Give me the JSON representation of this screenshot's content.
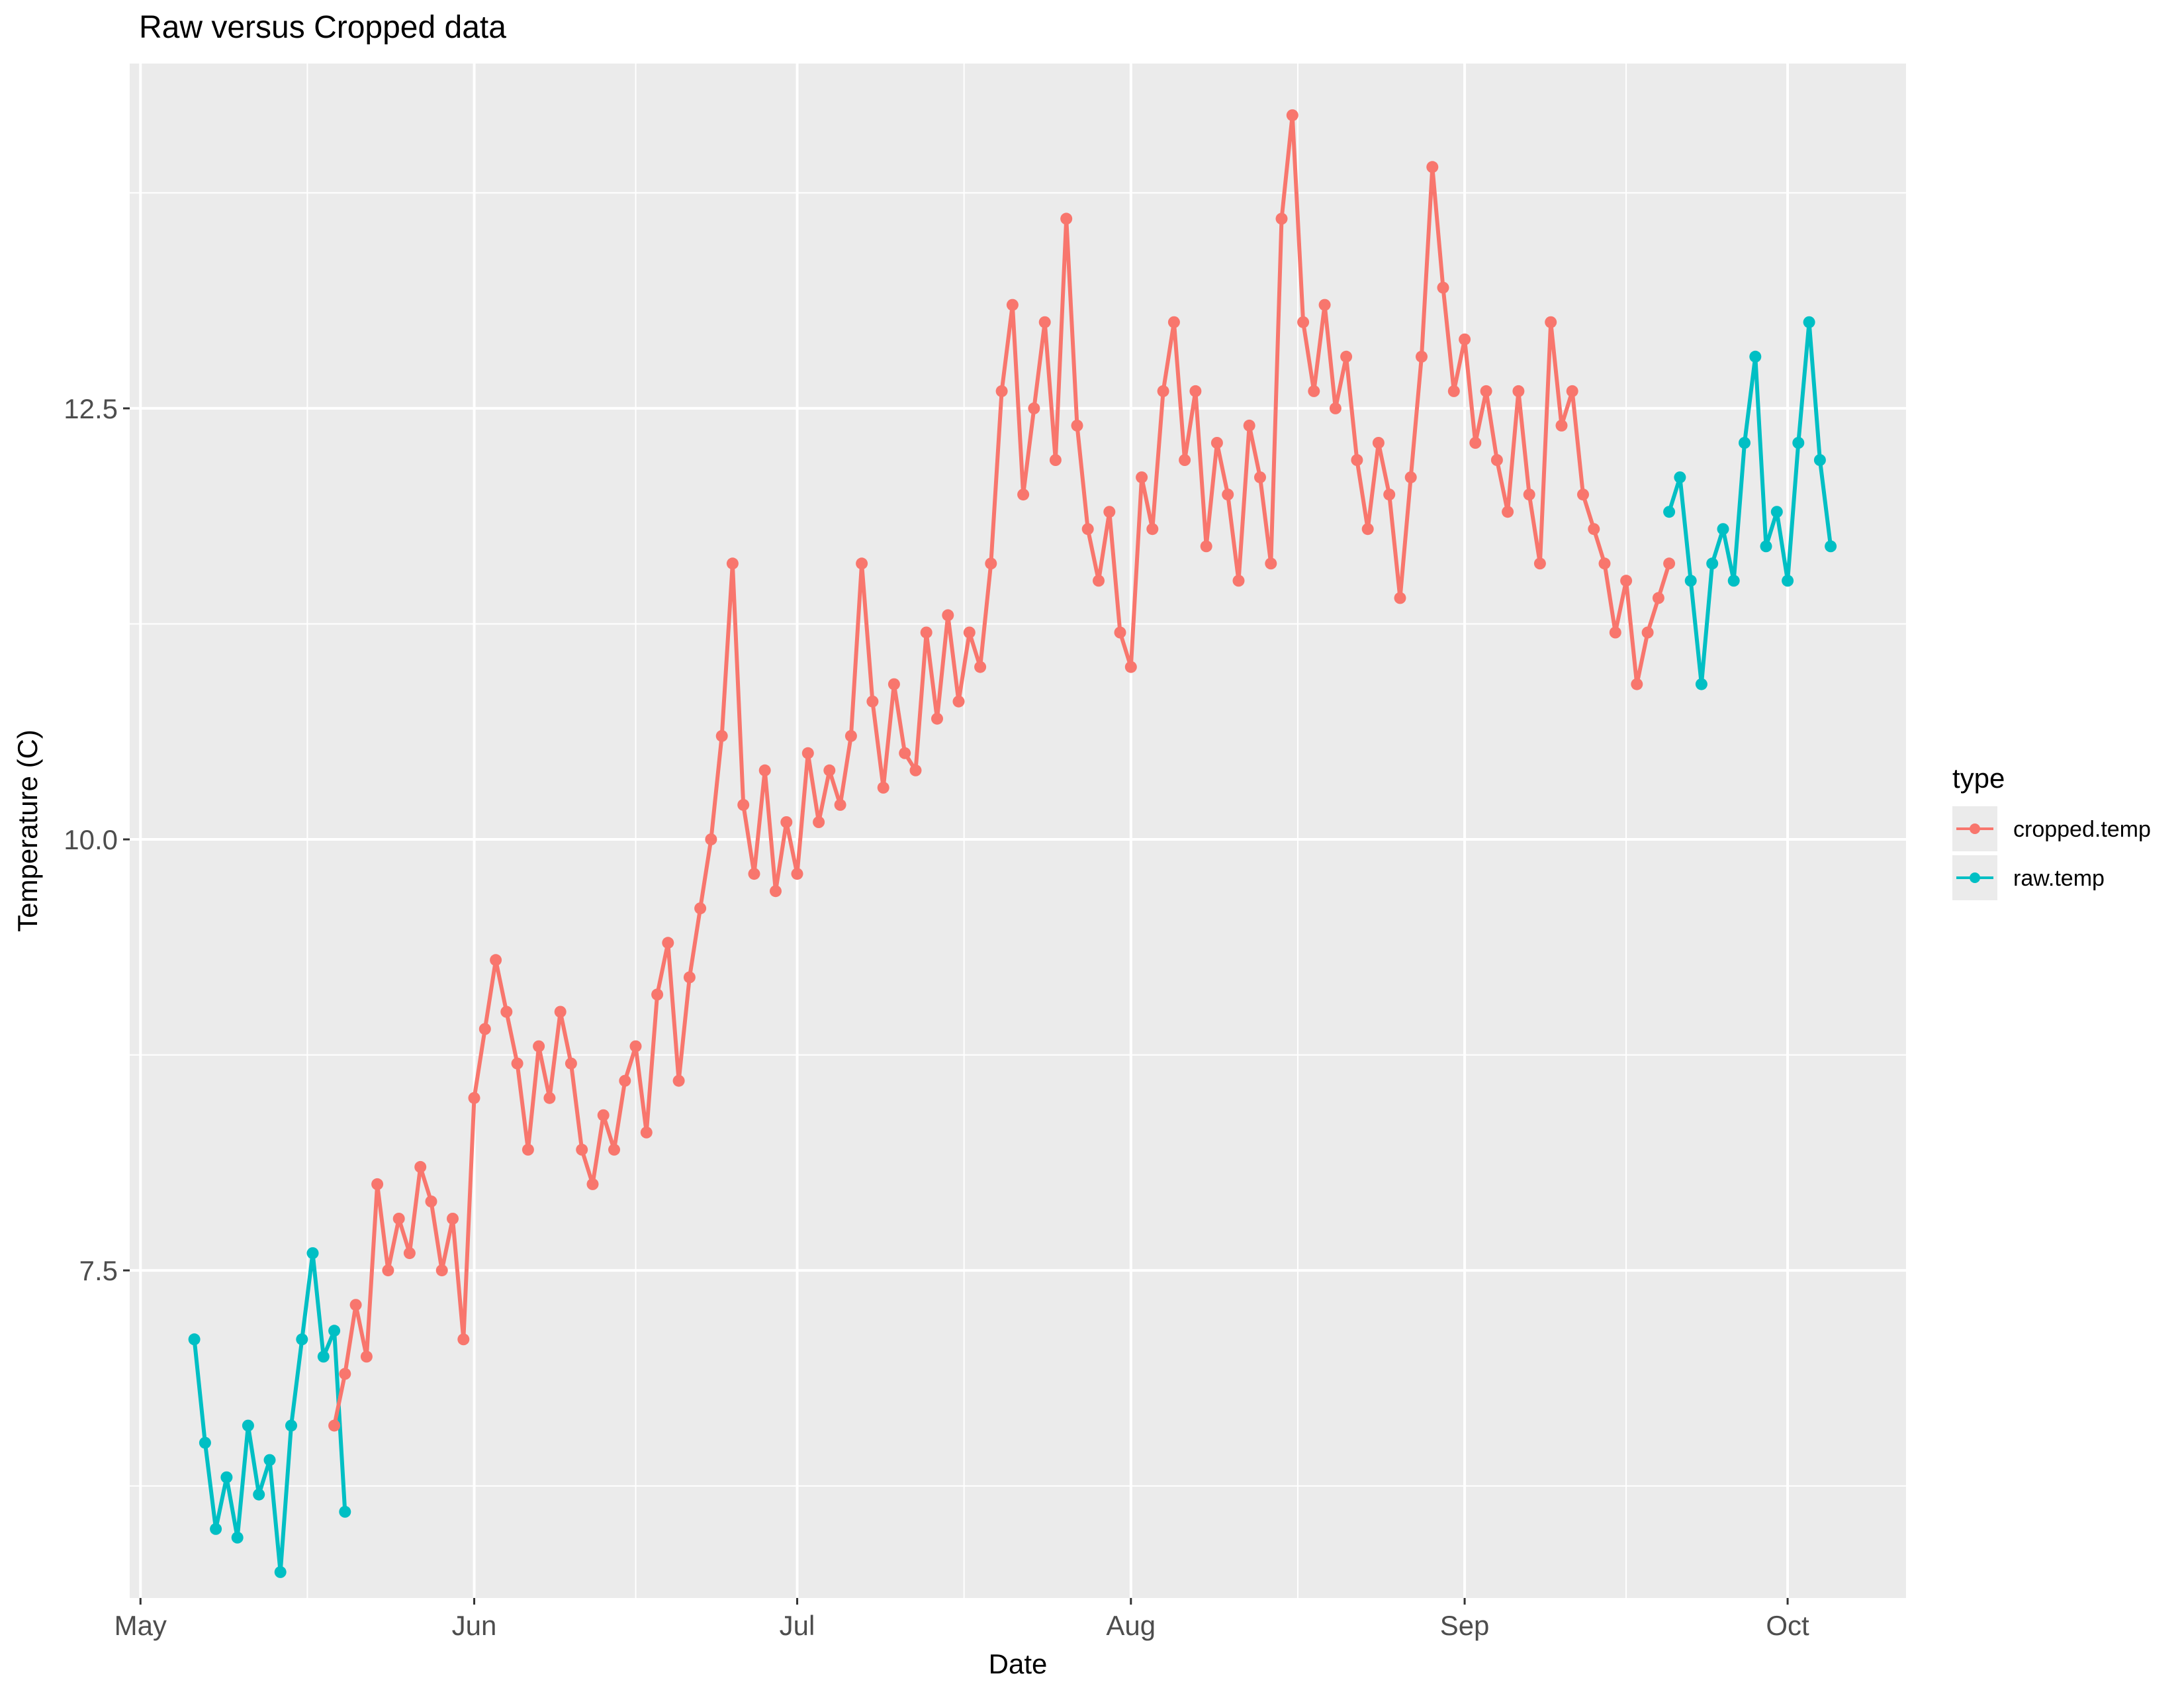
{
  "chart_data": {
    "type": "line",
    "title": "Raw versus Cropped data",
    "xlabel": "Date",
    "ylabel": "Temperature (C)",
    "x_ticks": [
      "May",
      "Jun",
      "Jul",
      "Aug",
      "Sep",
      "Oct"
    ],
    "x_tick_dates": [
      "2000-05-01",
      "2000-06-01",
      "2000-07-01",
      "2000-08-01",
      "2000-09-01",
      "2000-10-01"
    ],
    "xlim": [
      "2000-04-30",
      "2000-10-12"
    ],
    "y_ticks": [
      "7.5",
      "10.0",
      "12.5"
    ],
    "y_tick_values": [
      7.5,
      10.0,
      12.5
    ],
    "ylim": [
      5.6,
      14.5
    ],
    "grid": true,
    "legend": {
      "title": "type",
      "placement": "right",
      "entries": [
        {
          "label": "cropped.temp",
          "color": "#F8766D"
        },
        {
          "label": "raw.temp",
          "color": "#00BFC4"
        }
      ]
    },
    "series": [
      {
        "name": "raw.temp",
        "color": "#00BFC4",
        "x": [
          "2000-05-06",
          "2000-05-07",
          "2000-05-08",
          "2000-05-09",
          "2000-05-10",
          "2000-05-11",
          "2000-05-12",
          "2000-05-13",
          "2000-05-14",
          "2000-05-15",
          "2000-05-16",
          "2000-05-17",
          "2000-05-18",
          "2000-05-19",
          "2000-05-20",
          "2000-09-20",
          "2000-09-21",
          "2000-09-22",
          "2000-09-23",
          "2000-09-24",
          "2000-09-25",
          "2000-09-26",
          "2000-09-27",
          "2000-09-28",
          "2000-09-29",
          "2000-09-30",
          "2000-10-01",
          "2000-10-02",
          "2000-10-03",
          "2000-10-04",
          "2000-10-05"
        ],
        "values": [
          7.1,
          6.5,
          6.0,
          6.3,
          5.95,
          6.6,
          6.2,
          6.4,
          5.75,
          6.6,
          7.1,
          7.6,
          7.0,
          7.15,
          6.1,
          11.9,
          12.1,
          11.5,
          10.9,
          11.6,
          11.8,
          11.5,
          12.3,
          12.8,
          11.7,
          11.9,
          11.5,
          12.3,
          13.0,
          12.2,
          11.7
        ]
      },
      {
        "name": "cropped.temp",
        "color": "#F8766D",
        "x": [
          "2000-05-19",
          "2000-05-20",
          "2000-05-21",
          "2000-05-22",
          "2000-05-23",
          "2000-05-24",
          "2000-05-25",
          "2000-05-26",
          "2000-05-27",
          "2000-05-28",
          "2000-05-29",
          "2000-05-30",
          "2000-05-31",
          "2000-06-01",
          "2000-06-02",
          "2000-06-03",
          "2000-06-04",
          "2000-06-05",
          "2000-06-06",
          "2000-06-07",
          "2000-06-08",
          "2000-06-09",
          "2000-06-10",
          "2000-06-11",
          "2000-06-12",
          "2000-06-13",
          "2000-06-14",
          "2000-06-15",
          "2000-06-16",
          "2000-06-17",
          "2000-06-18",
          "2000-06-19",
          "2000-06-20",
          "2000-06-21",
          "2000-06-22",
          "2000-06-23",
          "2000-06-24",
          "2000-06-25",
          "2000-06-26",
          "2000-06-27",
          "2000-06-28",
          "2000-06-29",
          "2000-06-30",
          "2000-07-01",
          "2000-07-02",
          "2000-07-03",
          "2000-07-04",
          "2000-07-05",
          "2000-07-06",
          "2000-07-07",
          "2000-07-08",
          "2000-07-09",
          "2000-07-10",
          "2000-07-11",
          "2000-07-12",
          "2000-07-13",
          "2000-07-14",
          "2000-07-15",
          "2000-07-16",
          "2000-07-17",
          "2000-07-18",
          "2000-07-19",
          "2000-07-20",
          "2000-07-21",
          "2000-07-22",
          "2000-07-23",
          "2000-07-24",
          "2000-07-25",
          "2000-07-26",
          "2000-07-27",
          "2000-07-28",
          "2000-07-29",
          "2000-07-30",
          "2000-07-31",
          "2000-08-01",
          "2000-08-02",
          "2000-08-03",
          "2000-08-04",
          "2000-08-05",
          "2000-08-06",
          "2000-08-07",
          "2000-08-08",
          "2000-08-09",
          "2000-08-10",
          "2000-08-11",
          "2000-08-12",
          "2000-08-13",
          "2000-08-14",
          "2000-08-15",
          "2000-08-16",
          "2000-08-17",
          "2000-08-18",
          "2000-08-19",
          "2000-08-20",
          "2000-08-21",
          "2000-08-22",
          "2000-08-23",
          "2000-08-24",
          "2000-08-25",
          "2000-08-26",
          "2000-08-27",
          "2000-08-28",
          "2000-08-29",
          "2000-08-30",
          "2000-08-31",
          "2000-09-01",
          "2000-09-02",
          "2000-09-03",
          "2000-09-04",
          "2000-09-05",
          "2000-09-06",
          "2000-09-07",
          "2000-09-08",
          "2000-09-09",
          "2000-09-10",
          "2000-09-11",
          "2000-09-12",
          "2000-09-13",
          "2000-09-14",
          "2000-09-15",
          "2000-09-16",
          "2000-09-17",
          "2000-09-18",
          "2000-09-19",
          "2000-09-20"
        ],
        "values": [
          6.6,
          6.9,
          7.3,
          7.0,
          8.0,
          7.5,
          7.8,
          7.6,
          8.1,
          7.9,
          7.5,
          7.8,
          7.1,
          8.5,
          8.9,
          9.3,
          9.0,
          8.7,
          8.2,
          8.8,
          8.5,
          9.0,
          8.7,
          8.2,
          8.0,
          8.4,
          8.2,
          8.6,
          8.8,
          8.3,
          9.1,
          9.4,
          8.6,
          9.2,
          9.6,
          10.0,
          10.6,
          11.6,
          10.2,
          9.8,
          10.4,
          9.7,
          10.1,
          9.8,
          10.5,
          10.1,
          10.4,
          10.2,
          10.6,
          11.6,
          10.8,
          10.3,
          10.9,
          10.5,
          10.4,
          11.2,
          10.7,
          11.3,
          10.8,
          11.2,
          11.0,
          11.6,
          12.6,
          13.1,
          12.0,
          12.5,
          13.0,
          12.2,
          13.6,
          12.4,
          11.8,
          11.5,
          11.9,
          11.2,
          11.0,
          12.1,
          11.8,
          12.6,
          13.0,
          12.2,
          12.6,
          11.7,
          12.3,
          12.0,
          11.5,
          12.4,
          12.1,
          11.6,
          13.6,
          14.2,
          13.0,
          12.6,
          13.1,
          12.5,
          12.8,
          12.2,
          11.8,
          12.3,
          12.0,
          11.4,
          12.1,
          12.8,
          13.9,
          13.2,
          12.6,
          12.9,
          12.3,
          12.6,
          12.2,
          11.9,
          12.6,
          12.0,
          11.6,
          13.0,
          12.4,
          12.6,
          12.0,
          11.8,
          11.6,
          11.2,
          11.5,
          10.9,
          11.2,
          11.4,
          11.6
        ]
      }
    ]
  }
}
